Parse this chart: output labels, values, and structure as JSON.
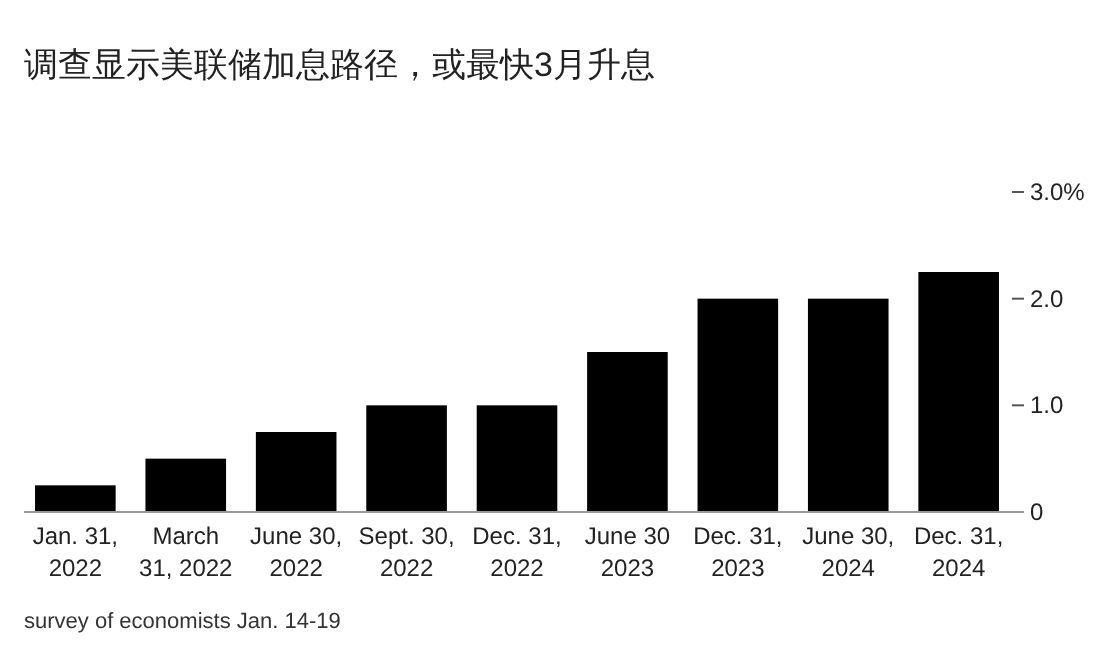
{
  "chart_data": {
    "type": "bar",
    "title": "调查显示美联储加息路径，或最快3月升息",
    "categories": [
      "Jan. 31,\n2022",
      "March\n31, 2022",
      "June 30,\n2022",
      "Sept. 30,\n2022",
      "Dec. 31,\n2022",
      "June 30\n2023",
      "Dec. 31,\n2023",
      "June 30,\n2024",
      "Dec. 31,\n2024"
    ],
    "values": [
      0.25,
      0.5,
      0.75,
      1.0,
      1.0,
      1.5,
      2.0,
      2.0,
      2.25
    ],
    "color": "#000000",
    "ylim": [
      0,
      3
    ],
    "yticks": [
      0,
      {
        "value": 1,
        "label": "1.0"
      },
      {
        "value": 2,
        "label": "2.0"
      },
      {
        "value": 3,
        "label": "3.0%"
      }
    ],
    "annotations": [
      "survey of economists Jan. 14-19"
    ]
  }
}
